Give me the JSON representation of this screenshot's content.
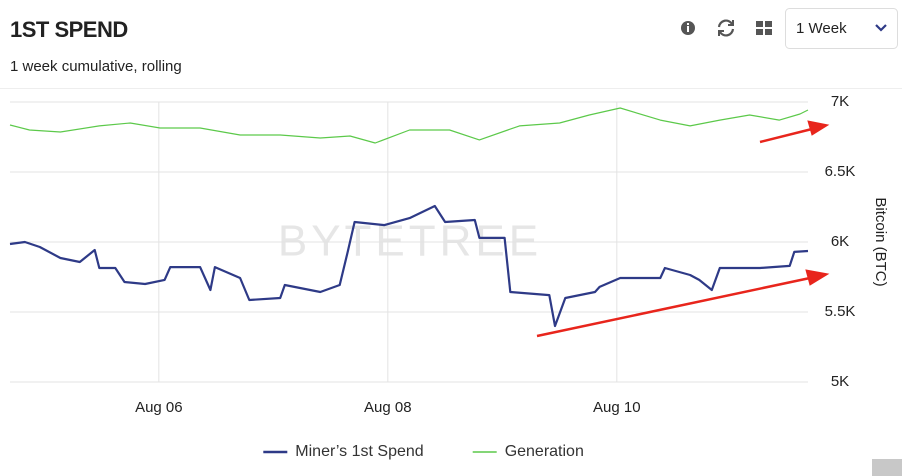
{
  "chart_data": {
    "type": "line",
    "title": "1ST SPEND",
    "subtitle": "1 week cumulative, rolling",
    "range_selector": "1 Week",
    "watermark": "BYTETREE",
    "y_label": "Bitcoin (BTC)",
    "xlim": [
      4.7,
      11.67
    ],
    "xticks": [
      {
        "value": 6,
        "label": "Aug 06"
      },
      {
        "value": 8,
        "label": "Aug 08"
      },
      {
        "value": 10,
        "label": "Aug 10"
      }
    ],
    "ylim": [
      5000,
      7000
    ],
    "yticks": [
      {
        "value": 5000,
        "label": "5K"
      },
      {
        "value": 5500,
        "label": "5.5K"
      },
      {
        "value": 6000,
        "label": "6K"
      },
      {
        "value": 6500,
        "label": "6.5K"
      },
      {
        "value": 7000,
        "label": "7K"
      }
    ],
    "grid": true,
    "legend": "bottom",
    "series": [
      {
        "name": "Miner’s 1st Spend",
        "color": "#2e3a87",
        "x": [
          4.7,
          4.83,
          4.96,
          5.14,
          5.31,
          5.44,
          5.48,
          5.62,
          5.7,
          5.88,
          6.05,
          6.1,
          6.36,
          6.45,
          6.49,
          6.71,
          6.79,
          7.06,
          7.1,
          7.41,
          7.58,
          7.65,
          7.71,
          7.97,
          8.19,
          8.41,
          8.5,
          8.76,
          8.8,
          9.02,
          9.07,
          9.41,
          9.46,
          9.55,
          9.81,
          9.85,
          10.03,
          10.38,
          10.42,
          10.64,
          10.72,
          10.83,
          10.9,
          11.25,
          11.51,
          11.55,
          11.67
        ],
        "values": [
          5986,
          6000,
          5964,
          5886,
          5857,
          5943,
          5814,
          5814,
          5714,
          5700,
          5729,
          5821,
          5821,
          5657,
          5821,
          5743,
          5586,
          5600,
          5693,
          5643,
          5693,
          5929,
          6143,
          6121,
          6171,
          6257,
          6143,
          6157,
          6029,
          6029,
          5643,
          5621,
          5400,
          5600,
          5643,
          5679,
          5743,
          5743,
          5814,
          5764,
          5729,
          5657,
          5814,
          5814,
          5829,
          5929,
          5936
        ]
      },
      {
        "name": "Generation",
        "color": "#5cc94a",
        "x": [
          4.7,
          4.87,
          5.14,
          5.48,
          5.75,
          6.01,
          6.36,
          6.71,
          7.06,
          7.41,
          7.67,
          7.89,
          8.19,
          8.54,
          8.8,
          9.15,
          9.5,
          9.76,
          10.03,
          10.38,
          10.64,
          10.9,
          11.16,
          11.42,
          11.6,
          11.67
        ],
        "values": [
          6836,
          6800,
          6786,
          6829,
          6850,
          6814,
          6814,
          6764,
          6764,
          6743,
          6757,
          6707,
          6800,
          6800,
          6729,
          6829,
          6850,
          6907,
          6957,
          6871,
          6829,
          6871,
          6907,
          6871,
          6914,
          6943
        ]
      }
    ]
  }
}
